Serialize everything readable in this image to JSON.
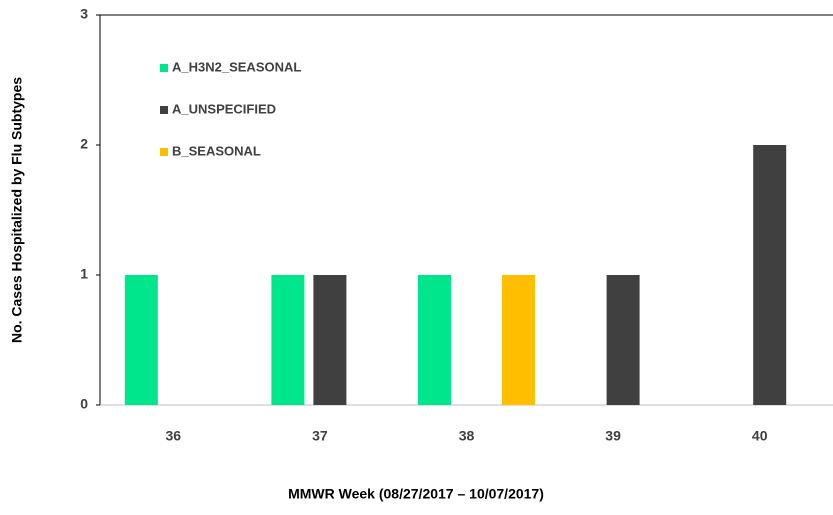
{
  "chart_data": {
    "type": "bar",
    "categories": [
      "36",
      "37",
      "38",
      "39",
      "40"
    ],
    "series": [
      {
        "name": "A_H3N2_SEASONAL",
        "color": "#00e68c",
        "values": [
          1,
          1,
          1,
          0,
          0
        ]
      },
      {
        "name": "A_UNSPECIFIED",
        "color": "#404040",
        "values": [
          0,
          1,
          0,
          1,
          2
        ]
      },
      {
        "name": "B_SEASONAL",
        "color": "#ffbf00",
        "values": [
          0,
          0,
          1,
          0,
          0
        ]
      }
    ],
    "ylim": [
      0,
      3
    ],
    "yticks": [
      0,
      1,
      2,
      3
    ],
    "grid": false,
    "y_label": "No. Cases Hospitalized by Flu Subtypes",
    "x_label": "MMWR Week (08/27/2017 – 10/07/2017)",
    "legend": "top-left"
  }
}
